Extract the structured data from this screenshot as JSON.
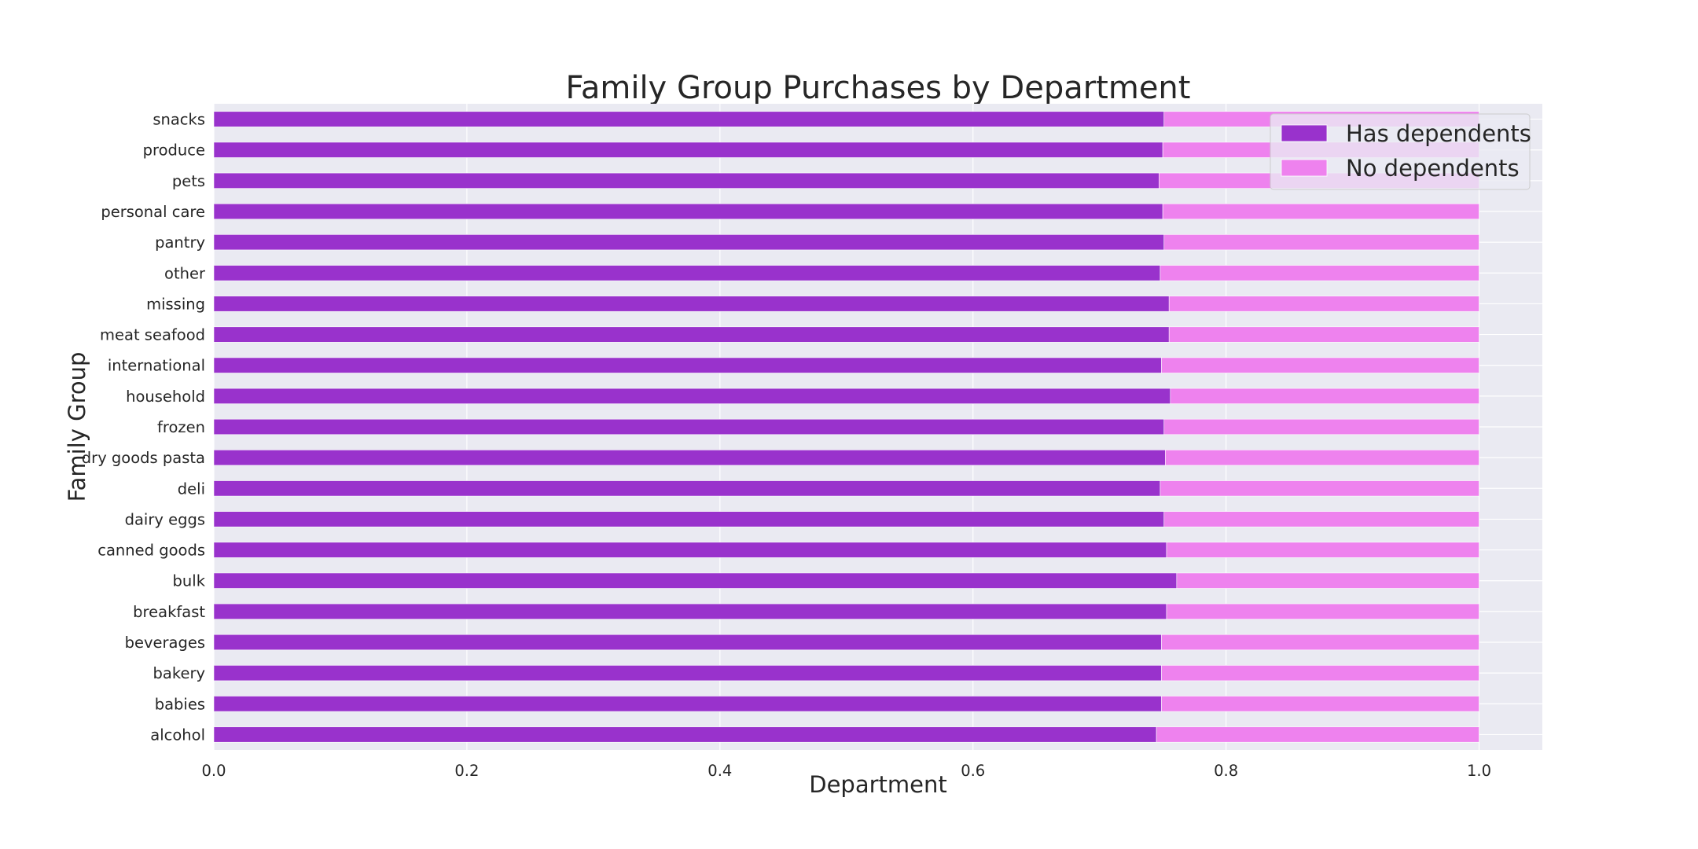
{
  "chart_data": {
    "type": "bar",
    "orientation": "horizontal",
    "stacked": true,
    "title": "Family Group Purchases by Department",
    "xlabel": "Department",
    "ylabel": "Family Group",
    "xlim": [
      0.0,
      1.05
    ],
    "xticks": [
      "0.0",
      "0.2",
      "0.4",
      "0.6",
      "0.8",
      "1.0"
    ],
    "grid": true,
    "legend_position": "top-right",
    "categories": [
      "alcohol",
      "babies",
      "bakery",
      "beverages",
      "breakfast",
      "bulk",
      "canned goods",
      "dairy eggs",
      "deli",
      "dry goods pasta",
      "frozen",
      "household",
      "international",
      "meat seafood",
      "missing",
      "other",
      "pantry",
      "personal care",
      "pets",
      "produce",
      "snacks"
    ],
    "series": [
      {
        "name": "Has dependents",
        "color": "#9932CC",
        "values": [
          0.745,
          0.749,
          0.749,
          0.749,
          0.753,
          0.761,
          0.753,
          0.751,
          0.748,
          0.752,
          0.751,
          0.756,
          0.749,
          0.755,
          0.755,
          0.748,
          0.751,
          0.75,
          0.747,
          0.75,
          0.751
        ]
      },
      {
        "name": "No dependents",
        "color": "#EE82EE",
        "values": [
          0.255,
          0.251,
          0.251,
          0.251,
          0.247,
          0.239,
          0.247,
          0.249,
          0.252,
          0.248,
          0.249,
          0.244,
          0.251,
          0.245,
          0.245,
          0.252,
          0.249,
          0.25,
          0.253,
          0.25,
          0.249
        ]
      }
    ]
  }
}
